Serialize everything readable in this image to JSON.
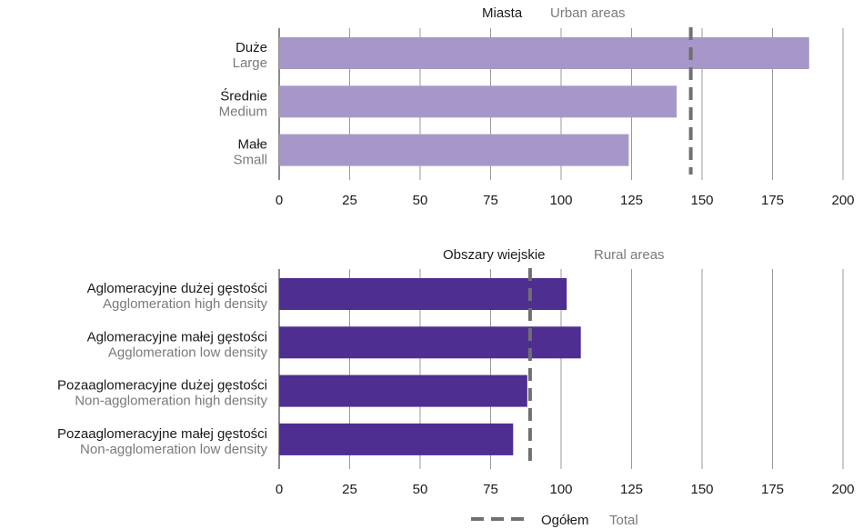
{
  "chart_data": [
    {
      "type": "bar",
      "orientation": "horizontal",
      "title": "Miasta",
      "title_secondary": "Urban areas",
      "categories": [
        {
          "label": "Duże",
          "label_secondary": "Large"
        },
        {
          "label": "Średnie",
          "label_secondary": "Medium"
        },
        {
          "label": "Małe",
          "label_secondary": "Small"
        }
      ],
      "values": [
        188,
        141,
        124
      ],
      "reference_value": 146,
      "xlim": [
        0,
        200
      ],
      "xticks": [
        "0",
        "25",
        "50",
        "75",
        "100",
        "125",
        "150",
        "175",
        "200"
      ],
      "color": "#a797c9",
      "grid": true
    },
    {
      "type": "bar",
      "orientation": "horizontal",
      "title": "Obszary wiejskie",
      "title_secondary": "Rural areas",
      "categories": [
        {
          "label": "Aglomeracyjne dużej gęstości",
          "label_secondary": "Agglomeration high density"
        },
        {
          "label": "Aglomeracyjne małej gęstości",
          "label_secondary": "Agglomeration low density"
        },
        {
          "label": "Pozaaglomeracyjne dużej gęstości",
          "label_secondary": "Non-agglomeration high density"
        },
        {
          "label": "Pozaaglomeracyjne małej gęstości",
          "label_secondary": "Non-agglomeration low density"
        }
      ],
      "values": [
        102,
        107,
        88,
        83
      ],
      "reference_value": 89,
      "xlim": [
        0,
        200
      ],
      "xticks": [
        "0",
        "25",
        "50",
        "75",
        "100",
        "125",
        "150",
        "175",
        "200"
      ],
      "color": "#4e2e91",
      "grid": true
    }
  ],
  "legend": {
    "label": "Ogółem",
    "label_secondary": "Total",
    "line_color": "#707070",
    "placement": "bottom-center"
  }
}
